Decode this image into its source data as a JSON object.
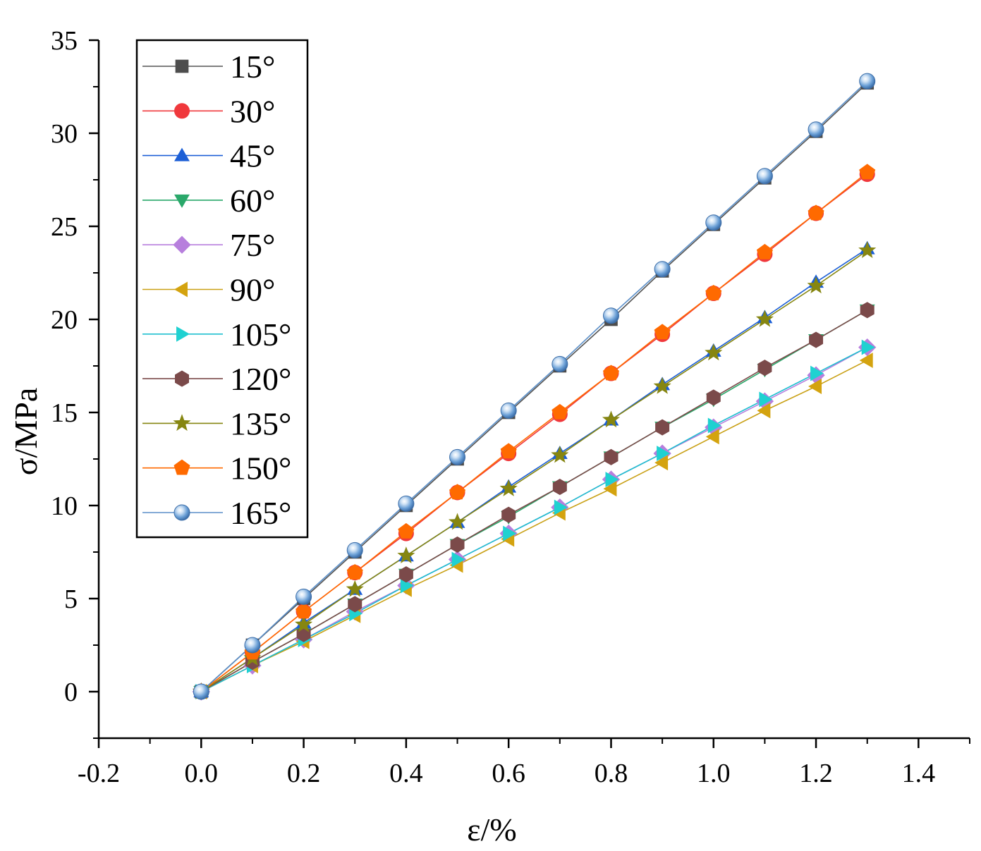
{
  "chart_data": {
    "type": "line",
    "xlabel": "ε/%",
    "ylabel": "σ/MPa",
    "xlim": [
      -0.2,
      1.5
    ],
    "ylim": [
      -2.5,
      35
    ],
    "x_ticks": [
      -0.2,
      0.0,
      0.2,
      0.4,
      0.6,
      0.8,
      1.0,
      1.2,
      1.4
    ],
    "x_tick_labels": [
      "-0.2",
      "0.0",
      "0.2",
      "0.4",
      "0.6",
      "0.8",
      "1.0",
      "1.2",
      "1.4"
    ],
    "y_ticks": [
      0,
      5,
      10,
      15,
      20,
      25,
      30,
      35
    ],
    "y_tick_labels": [
      "0",
      "5",
      "10",
      "15",
      "20",
      "25",
      "30",
      "35"
    ],
    "legend_position": "top-left",
    "grid": false,
    "x": [
      0.0,
      0.1,
      0.2,
      0.3,
      0.4,
      0.5,
      0.6,
      0.7,
      0.8,
      0.9,
      1.0,
      1.1,
      1.2,
      1.3
    ],
    "series": [
      {
        "name": "15°",
        "color": "#4d4d4d",
        "line_color": "#555555",
        "marker": "square",
        "values": [
          0,
          2.5,
          5.0,
          7.5,
          10.0,
          12.5,
          15.0,
          17.5,
          20.0,
          22.6,
          25.1,
          27.6,
          30.1,
          32.7
        ]
      },
      {
        "name": "30°",
        "color": "#f0383c",
        "line_color": "#f0383c",
        "marker": "circle",
        "values": [
          0,
          2.1,
          4.3,
          6.4,
          8.5,
          10.7,
          12.8,
          14.9,
          17.1,
          19.2,
          21.4,
          23.5,
          25.7,
          27.8
        ]
      },
      {
        "name": "45°",
        "color": "#1c5fd6",
        "line_color": "#1c5fd6",
        "marker": "triangle-up",
        "values": [
          0,
          1.8,
          3.7,
          5.5,
          7.3,
          9.1,
          11.0,
          12.8,
          14.6,
          16.5,
          18.3,
          20.1,
          22.0,
          23.8
        ]
      },
      {
        "name": "60°",
        "color": "#2aa86a",
        "line_color": "#2aa86a",
        "marker": "triangle-down",
        "values": [
          0,
          1.6,
          3.1,
          4.7,
          6.3,
          7.9,
          9.4,
          11.0,
          12.6,
          14.2,
          15.7,
          17.3,
          18.9,
          20.5
        ]
      },
      {
        "name": "75°",
        "color": "#b77fdd",
        "line_color": "#b77fdd",
        "marker": "diamond",
        "values": [
          0,
          1.4,
          2.8,
          4.3,
          5.7,
          7.1,
          8.5,
          9.9,
          11.4,
          12.8,
          14.2,
          15.6,
          17.0,
          18.5
        ]
      },
      {
        "name": "90°",
        "color": "#d4a30f",
        "line_color": "#c9a015",
        "marker": "triangle-left",
        "values": [
          0,
          1.4,
          2.7,
          4.1,
          5.5,
          6.8,
          8.2,
          9.6,
          10.9,
          12.3,
          13.7,
          15.1,
          16.4,
          17.8
        ]
      },
      {
        "name": "105°",
        "color": "#1fd1d1",
        "line_color": "#1fbfcf",
        "marker": "triangle-right",
        "values": [
          0,
          1.4,
          2.8,
          4.2,
          5.7,
          7.1,
          8.5,
          9.9,
          11.4,
          12.8,
          14.3,
          15.7,
          17.1,
          18.5
        ]
      },
      {
        "name": "120°",
        "color": "#7b4a4a",
        "line_color": "#7b4a4a",
        "marker": "hexagon",
        "values": [
          0,
          1.6,
          3.1,
          4.7,
          6.3,
          7.9,
          9.5,
          11.0,
          12.6,
          14.2,
          15.8,
          17.4,
          18.9,
          20.5
        ]
      },
      {
        "name": "135°",
        "color": "#868611",
        "line_color": "#868611",
        "marker": "star",
        "values": [
          0,
          1.8,
          3.6,
          5.5,
          7.3,
          9.1,
          10.9,
          12.7,
          14.6,
          16.4,
          18.2,
          20.0,
          21.8,
          23.7
        ]
      },
      {
        "name": "150°",
        "color": "#ff6a00",
        "line_color": "#ff6a00",
        "marker": "pentagon",
        "values": [
          0,
          2.1,
          4.3,
          6.4,
          8.6,
          10.7,
          12.9,
          15.0,
          17.1,
          19.3,
          21.4,
          23.6,
          25.7,
          27.9
        ]
      },
      {
        "name": "165°",
        "color": "#5b9bd5",
        "line_color": "#5b8fc8",
        "marker": "sphere",
        "values": [
          0,
          2.5,
          5.1,
          7.6,
          10.1,
          12.6,
          15.1,
          17.6,
          20.2,
          22.7,
          25.2,
          27.7,
          30.2,
          32.8
        ]
      }
    ]
  }
}
